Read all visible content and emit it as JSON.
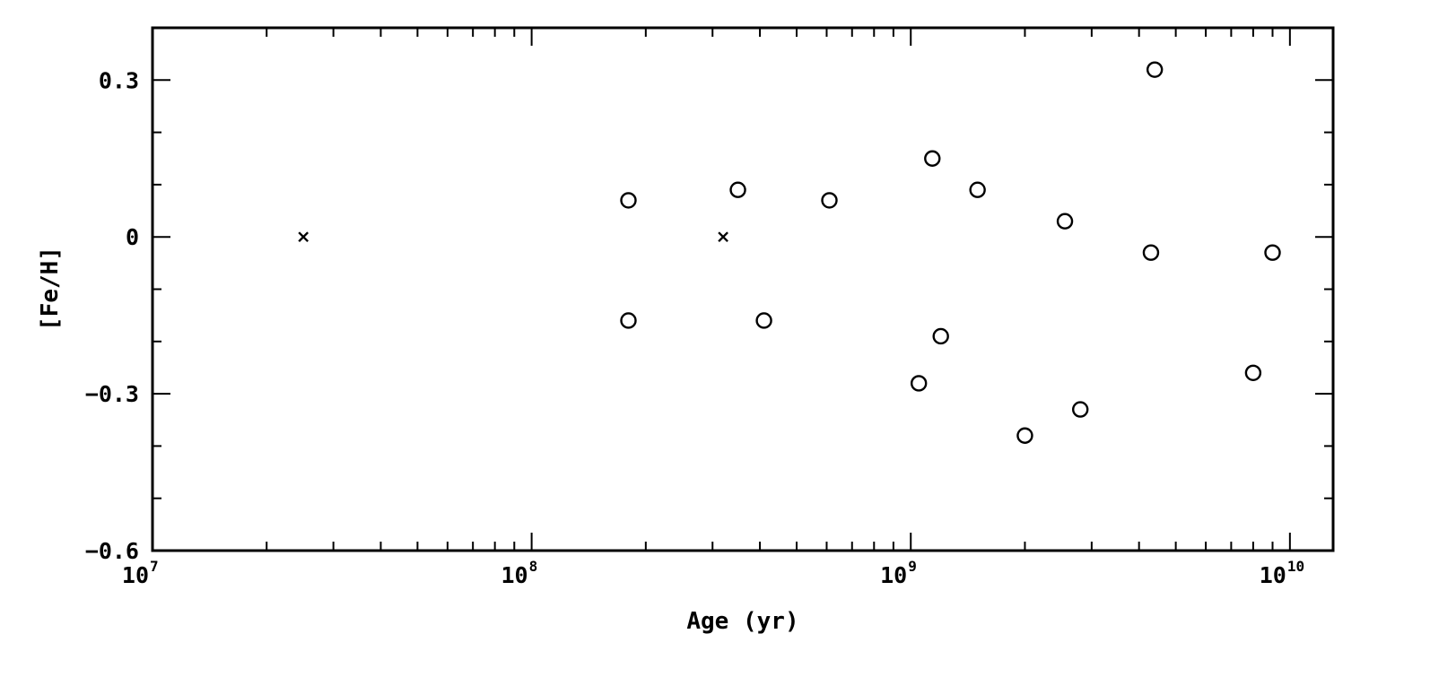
{
  "chart_data": {
    "type": "scatter",
    "title": "",
    "xlabel": "Age (yr)",
    "ylabel": "[Fe/H]",
    "xscale": "log",
    "xlim": [
      10000000,
      13000000000
    ],
    "ylim": [
      -0.6,
      0.4
    ],
    "grid": false,
    "legend": "none",
    "x_tick_labels": [
      {
        "value": 10000000,
        "base": "10",
        "exp": "7"
      },
      {
        "value": 100000000,
        "base": "10",
        "exp": "8"
      },
      {
        "value": 1000000000,
        "base": "10",
        "exp": "9"
      },
      {
        "value": 10000000000,
        "base": "10",
        "exp": "10"
      }
    ],
    "y_tick_labels": [
      {
        "value": 0.3,
        "label": "0.3"
      },
      {
        "value": 0,
        "label": "0"
      },
      {
        "value": -0.3,
        "label": "−0.3"
      },
      {
        "value": -0.6,
        "label": "−0.6"
      }
    ],
    "series": [
      {
        "marker": "circle",
        "points": [
          {
            "x": 180000000,
            "y": 0.07
          },
          {
            "x": 180000000,
            "y": -0.16
          },
          {
            "x": 350000000,
            "y": 0.09
          },
          {
            "x": 410000000,
            "y": -0.16
          },
          {
            "x": 610000000,
            "y": 0.07
          },
          {
            "x": 1050000000,
            "y": -0.28
          },
          {
            "x": 1140000000,
            "y": 0.15
          },
          {
            "x": 1200000000,
            "y": -0.19
          },
          {
            "x": 1500000000,
            "y": 0.09
          },
          {
            "x": 2000000000,
            "y": -0.38
          },
          {
            "x": 2550000000,
            "y": 0.03
          },
          {
            "x": 2800000000,
            "y": -0.33
          },
          {
            "x": 4300000000,
            "y": -0.03
          },
          {
            "x": 4400000000,
            "y": 0.32
          },
          {
            "x": 8000000000,
            "y": -0.26
          },
          {
            "x": 9000000000,
            "y": -0.03
          }
        ]
      },
      {
        "marker": "cross",
        "points": [
          {
            "x": 25000000,
            "y": 0.0
          },
          {
            "x": 320000000,
            "y": 0.0
          }
        ]
      }
    ]
  }
}
